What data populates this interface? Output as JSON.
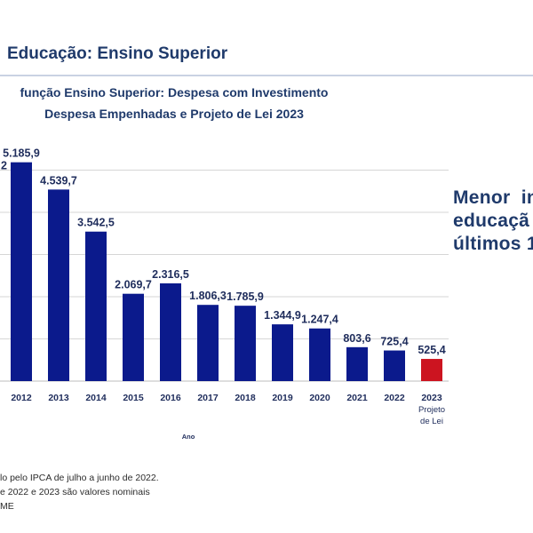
{
  "slide": {
    "title": "Educação: Ensino Superior"
  },
  "chart_data": {
    "type": "bar",
    "title_lines": [
      "função Ensino Superior: Despesa com Investimento",
      "Despesa Empenhadas e Projeto de Lei 2023"
    ],
    "xlabel": "Ano",
    "ylabel": "",
    "categories": [
      "2012",
      "2013",
      "2014",
      "2015",
      "2016",
      "2017",
      "2018",
      "2019",
      "2020",
      "2021",
      "2022",
      "2023\nProjeto\nde Lei"
    ],
    "values": [
      5185.9,
      4539.7,
      3542.5,
      2069.7,
      2316.5,
      1806.3,
      1785.9,
      1344.9,
      1247.4,
      803.6,
      725.4,
      525.4
    ],
    "value_labels": [
      "5.185,9",
      "4.539,7",
      "3.542,5",
      "2.069,7",
      "2.316,5",
      "1.806,3",
      "1.785,9",
      "1.344,9",
      "1.247,4",
      "803,6",
      "725,4",
      "525,4"
    ],
    "partial_label": "2",
    "ylim": [
      0,
      5600
    ],
    "grid": true,
    "bar_color": "#0b1a8c",
    "highlight_color": "#cc1420",
    "highlight_index": 11
  },
  "callout": {
    "text": "Menor  in\neducaçã\núltimos 1"
  },
  "footnotes": [
    "lo pelo IPCA de julho a junho de 2022.",
    "e 2022 e 2023 são valores nominais",
    "ME"
  ]
}
